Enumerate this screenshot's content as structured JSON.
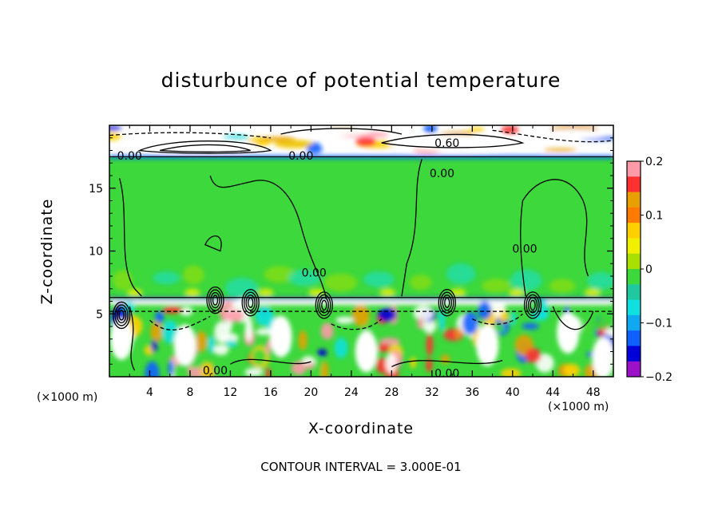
{
  "chart_data": {
    "type": "heatmap",
    "title": "disturbunce of potential temperature",
    "xlabel": "X-coordinate",
    "ylabel": "Z-coordinate",
    "x_unit": "(×1000 m)",
    "xlim": [
      0,
      50
    ],
    "ylim": [
      0,
      20
    ],
    "x_ticks": [
      4,
      8,
      12,
      16,
      20,
      24,
      28,
      32,
      36,
      40,
      44,
      48
    ],
    "y_ticks": [
      5,
      10,
      15
    ],
    "colorbar": {
      "range": [
        -0.2,
        0.2
      ],
      "tick_values": [
        0.2,
        0.1,
        0,
        -0.1,
        -0.2
      ],
      "tick_labels": [
        "0.2",
        "0.1",
        "0",
        "−0.1",
        "−0.2"
      ],
      "colors": [
        "#ff9aa8",
        "#ff3030",
        "#e8a000",
        "#ff7a00",
        "#ffd000",
        "#f0f000",
        "#a8e000",
        "#3cd83c",
        "#20c8a0",
        "#10e0e0",
        "#10a8f0",
        "#1060ff",
        "#0000d8",
        "#9c10c8"
      ]
    },
    "contour_labels": [
      {
        "text": "0.60",
        "x": 33.5,
        "z": 18.6
      },
      {
        "text": "0.00",
        "x": 2.0,
        "z": 17.6
      },
      {
        "text": "0.00",
        "x": 19.0,
        "z": 17.6
      },
      {
        "text": "0.00",
        "x": 33.0,
        "z": 16.2
      },
      {
        "text": "0.00",
        "x": 20.3,
        "z": 8.3
      },
      {
        "text": "0.00",
        "x": 41.2,
        "z": 10.2
      },
      {
        "text": "0.00",
        "x": 10.5,
        "z": 0.5
      },
      {
        "text": "0.00",
        "x": 33.5,
        "z": 0.3
      }
    ],
    "footer": "CONTOUR INTERVAL = 3.000E-01"
  }
}
